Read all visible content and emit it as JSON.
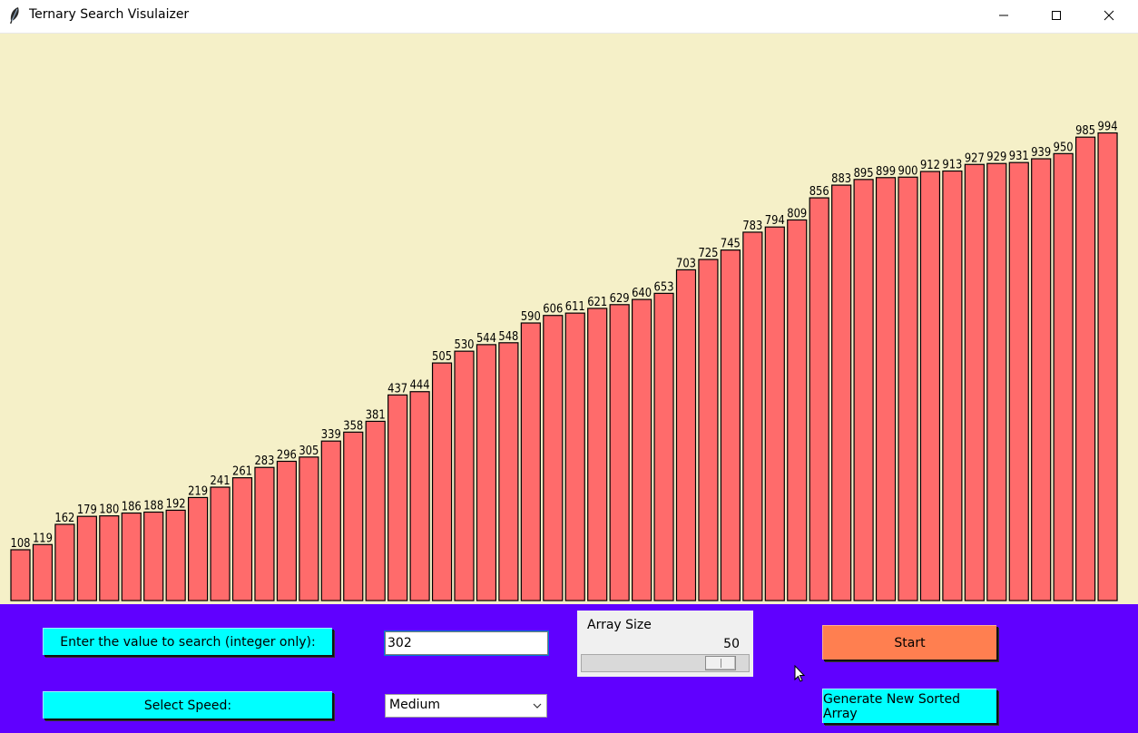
{
  "window": {
    "title": "Ternary Search Visulaizer"
  },
  "chart_data": {
    "type": "bar",
    "values": [
      108,
      119,
      162,
      179,
      180,
      186,
      188,
      192,
      219,
      241,
      261,
      283,
      296,
      305,
      339,
      358,
      381,
      437,
      444,
      505,
      530,
      544,
      548,
      590,
      606,
      611,
      621,
      629,
      640,
      653,
      703,
      725,
      745,
      783,
      794,
      809,
      856,
      883,
      895,
      899,
      900,
      912,
      913,
      927,
      929,
      931,
      939,
      950,
      985,
      994
    ],
    "ylim": [
      0,
      1000
    ],
    "bar_color": "#ff6b6b",
    "background": "#f5f0c8",
    "grid": false
  },
  "controls": {
    "search_label": "Enter the value to search (integer only):",
    "search_value": "302",
    "speed_label": "Select Speed:",
    "speed_selected": "Medium",
    "array_size_label": "Array Size",
    "array_size_value": "50",
    "array_size_slider": {
      "min": 3,
      "max": 50,
      "value": 50
    },
    "start_label": "Start",
    "generate_label": "Generate New Sorted Array"
  },
  "colors": {
    "panel": "#6000ff",
    "cyan": "#00ffff",
    "start": "#ff7f50"
  },
  "icons": {
    "app": "feather-icon",
    "minimize": "minimize-icon",
    "maximize": "maximize-icon",
    "close": "close-icon",
    "cursor": "mouse-pointer-icon"
  }
}
